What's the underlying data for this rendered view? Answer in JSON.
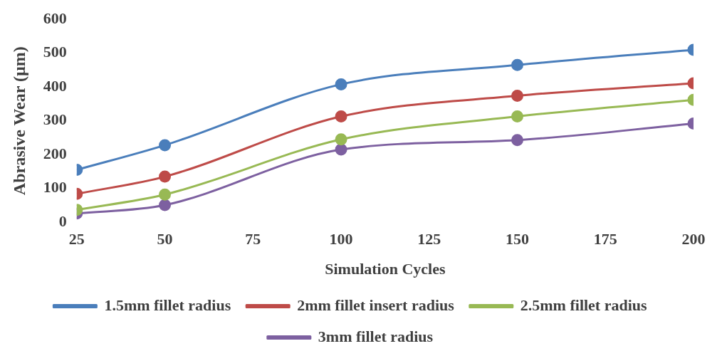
{
  "chart_data": {
    "type": "line",
    "xlabel": "Simulation Cycles",
    "ylabel": "Abrasive Wear (µm)",
    "x": [
      25,
      50,
      100,
      150,
      200
    ],
    "xlim": [
      25,
      200
    ],
    "xticks": [
      25,
      50,
      75,
      100,
      125,
      150,
      175,
      200
    ],
    "ylim": [
      0,
      600
    ],
    "yticks": [
      0,
      100,
      200,
      300,
      400,
      500,
      600
    ],
    "grid": false,
    "legend": "bottom",
    "marker": "circle",
    "line_style": "solid",
    "series": [
      {
        "name": "1.5mm fillet radius",
        "color": "#4a7ebb",
        "values": [
          155,
          228,
          408,
          465,
          510
        ]
      },
      {
        "name": "2mm fillet insert radius",
        "color": "#be4b48",
        "values": [
          84,
          135,
          313,
          374,
          411
        ]
      },
      {
        "name": "2.5mm fillet radius",
        "color": "#98b954",
        "values": [
          37,
          82,
          245,
          313,
          362
        ]
      },
      {
        "name": "3mm fillet radius",
        "color": "#7d60a0",
        "values": [
          26,
          51,
          215,
          243,
          292
        ]
      }
    ]
  }
}
